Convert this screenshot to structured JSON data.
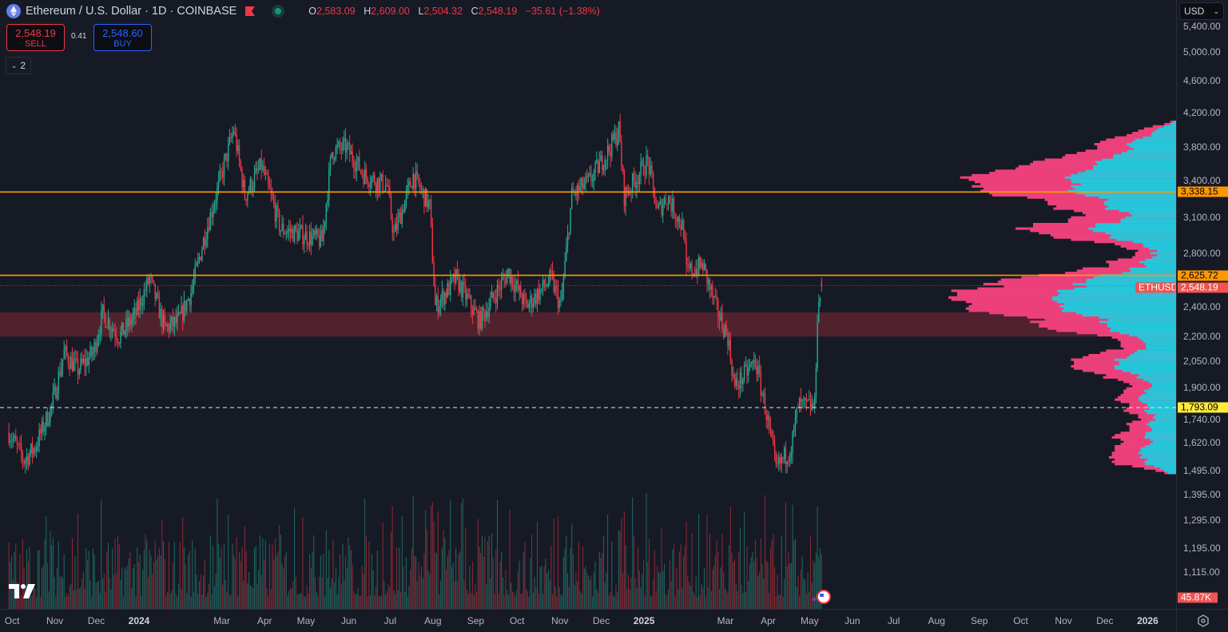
{
  "header": {
    "title": "Ethereum / U.S. Dollar · 1D · COINBASE",
    "ohlc": {
      "o_label": "O",
      "o": "2,583.09",
      "h_label": "H",
      "h": "2,609.00",
      "l_label": "L",
      "l": "2,504.32",
      "c_label": "C",
      "c": "2,548.19",
      "change": "−35.61 (−1.38%)"
    }
  },
  "trade": {
    "sell_price": "2,548.19",
    "sell_label": "SELL",
    "spread": "0.41",
    "buy_price": "2,548.60",
    "buy_label": "BUY"
  },
  "indicators_collapse": {
    "count": "2"
  },
  "currency_select": "USD",
  "colors": {
    "up": "#22ab94",
    "down": "#f23645",
    "level": "#ff9800",
    "zone": "#5b2530",
    "vp_up": "#26c6da",
    "vp_down": "#ec407a",
    "bg": "#161a25"
  },
  "chart_data": {
    "type": "candlestick",
    "symbol": "ETHUSD",
    "scale": "log",
    "ylim": [
      1060,
      5500
    ],
    "price_ticks": [
      "5,400.00",
      "5,000.00",
      "4,600.00",
      "4,200.00",
      "3,800.00",
      "3,400.00",
      "3,100.00",
      "2,800.00",
      "2,400.00",
      "2,200.00",
      "2,050.00",
      "1,900.00",
      "1,740.00",
      "1,620.00",
      "1,495.00",
      "1,395.00",
      "1,295.00",
      "1,195.00",
      "1,115.00"
    ],
    "time_ticks": [
      {
        "label": "Oct",
        "date": "2023-10-01"
      },
      {
        "label": "Nov",
        "date": "2023-11-01"
      },
      {
        "label": "Dec",
        "date": "2023-12-01"
      },
      {
        "label": "2024",
        "date": "2024-01-01",
        "bold": true
      },
      {
        "label": "Mar",
        "date": "2024-03-01"
      },
      {
        "label": "Apr",
        "date": "2024-04-01"
      },
      {
        "label": "May",
        "date": "2024-05-01"
      },
      {
        "label": "Jun",
        "date": "2024-06-01"
      },
      {
        "label": "Jul",
        "date": "2024-07-01"
      },
      {
        "label": "Aug",
        "date": "2024-08-01"
      },
      {
        "label": "Sep",
        "date": "2024-09-01"
      },
      {
        "label": "Oct",
        "date": "2024-10-01"
      },
      {
        "label": "Nov",
        "date": "2024-11-01"
      },
      {
        "label": "Dec",
        "date": "2024-12-01"
      },
      {
        "label": "2025",
        "date": "2025-01-01",
        "bold": true
      },
      {
        "label": "Mar",
        "date": "2025-03-01"
      },
      {
        "label": "Apr",
        "date": "2025-04-01"
      },
      {
        "label": "May",
        "date": "2025-05-01"
      },
      {
        "label": "Jun",
        "date": "2025-06-01"
      },
      {
        "label": "Jul",
        "date": "2025-07-01"
      },
      {
        "label": "Aug",
        "date": "2025-08-01"
      },
      {
        "label": "Sep",
        "date": "2025-09-01"
      },
      {
        "label": "Oct",
        "date": "2025-10-01"
      },
      {
        "label": "Nov",
        "date": "2025-11-01"
      },
      {
        "label": "Dec",
        "date": "2025-12-01"
      },
      {
        "label": "2026",
        "date": "2026-01-01",
        "bold": true
      }
    ],
    "close_path": [
      [
        "2023-10-01",
        1670
      ],
      [
        "2023-10-12",
        1540
      ],
      [
        "2023-10-20",
        1600
      ],
      [
        "2023-11-01",
        1800
      ],
      [
        "2023-11-10",
        2100
      ],
      [
        "2023-11-20",
        2000
      ],
      [
        "2023-12-01",
        2100
      ],
      [
        "2023-12-08",
        2350
      ],
      [
        "2023-12-20",
        2200
      ],
      [
        "2024-01-01",
        2350
      ],
      [
        "2024-01-11",
        2600
      ],
      [
        "2024-01-22",
        2250
      ],
      [
        "2024-02-01",
        2300
      ],
      [
        "2024-02-10",
        2500
      ],
      [
        "2024-02-20",
        2950
      ],
      [
        "2024-03-01",
        3400
      ],
      [
        "2024-03-12",
        4000
      ],
      [
        "2024-03-20",
        3300
      ],
      [
        "2024-04-01",
        3600
      ],
      [
        "2024-04-15",
        3000
      ],
      [
        "2024-05-01",
        2950
      ],
      [
        "2024-05-15",
        2900
      ],
      [
        "2024-05-22",
        3750
      ],
      [
        "2024-06-01",
        3800
      ],
      [
        "2024-06-15",
        3500
      ],
      [
        "2024-07-01",
        3400
      ],
      [
        "2024-07-06",
        2950
      ],
      [
        "2024-07-20",
        3500
      ],
      [
        "2024-08-01",
        3200
      ],
      [
        "2024-08-05",
        2400
      ],
      [
        "2024-08-20",
        2600
      ],
      [
        "2024-09-06",
        2300
      ],
      [
        "2024-09-27",
        2650
      ],
      [
        "2024-10-10",
        2400
      ],
      [
        "2024-10-28",
        2600
      ],
      [
        "2024-11-04",
        2400
      ],
      [
        "2024-11-12",
        3300
      ],
      [
        "2024-11-25",
        3450
      ],
      [
        "2024-12-10",
        3800
      ],
      [
        "2024-12-16",
        4000
      ],
      [
        "2024-12-20",
        3300
      ],
      [
        "2025-01-06",
        3650
      ],
      [
        "2025-01-13",
        3150
      ],
      [
        "2025-01-20",
        3300
      ],
      [
        "2025-02-01",
        3000
      ],
      [
        "2025-02-03",
        2650
      ],
      [
        "2025-02-15",
        2700
      ],
      [
        "2025-02-24",
        2400
      ],
      [
        "2025-03-05",
        2200
      ],
      [
        "2025-03-10",
        1900
      ],
      [
        "2025-03-25",
        2050
      ],
      [
        "2025-04-01",
        1800
      ],
      [
        "2025-04-09",
        1500
      ],
      [
        "2025-04-20",
        1600
      ],
      [
        "2025-04-25",
        1800
      ],
      [
        "2025-05-07",
        1800
      ],
      [
        "2025-05-09",
        2350
      ],
      [
        "2025-05-12",
        2548.19
      ]
    ],
    "levels": [
      {
        "price": 3338.15,
        "label": "3,338.15",
        "style": "solid"
      },
      {
        "price": 2625.72,
        "label": "2,625.72",
        "style": "solid"
      },
      {
        "price": 1793.09,
        "label": "1,793.09",
        "style": "dashed"
      }
    ],
    "zone": [
      2200,
      2360
    ],
    "last_price": {
      "symbol": "ETHUSD",
      "price": 2548.19,
      "label": "2,548.19"
    },
    "volume_last": "45.87K"
  }
}
